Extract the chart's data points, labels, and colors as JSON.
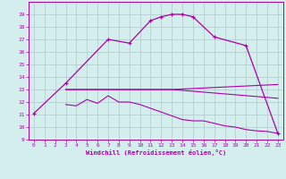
{
  "xlabel": "Windchill (Refroidissement éolien,°C)",
  "bg_color": "#d4eeed",
  "line_color": "#aa00aa",
  "grid_color": "#b0c8c8",
  "xlim": [
    -0.5,
    23.5
  ],
  "ylim": [
    9,
    20
  ],
  "xticks": [
    0,
    1,
    2,
    3,
    4,
    5,
    6,
    7,
    8,
    9,
    10,
    11,
    12,
    13,
    14,
    15,
    16,
    17,
    18,
    19,
    20,
    21,
    22,
    23
  ],
  "yticks": [
    9,
    10,
    11,
    12,
    13,
    14,
    15,
    16,
    17,
    18,
    19
  ],
  "curves": [
    {
      "x": [
        0,
        3,
        7,
        9,
        11,
        12,
        13,
        14,
        15,
        17,
        20,
        23
      ],
      "y": [
        11.1,
        13.5,
        17.0,
        16.7,
        18.5,
        18.8,
        19.0,
        19.0,
        18.8,
        17.2,
        16.5,
        9.5
      ],
      "marker": true
    },
    {
      "x": [
        3,
        13,
        23
      ],
      "y": [
        13.0,
        13.0,
        13.4
      ],
      "marker": false
    },
    {
      "x": [
        3,
        13,
        23
      ],
      "y": [
        13.0,
        13.0,
        12.3
      ],
      "marker": false
    },
    {
      "x": [
        3,
        4,
        5,
        6,
        7,
        8,
        9,
        10,
        11,
        12,
        13,
        14,
        15,
        16,
        17,
        18,
        19,
        20,
        21,
        22,
        23
      ],
      "y": [
        11.8,
        11.7,
        12.2,
        11.9,
        12.5,
        12.0,
        12.0,
        11.8,
        11.5,
        11.2,
        10.9,
        10.6,
        10.5,
        10.5,
        10.3,
        10.1,
        10.0,
        9.8,
        9.7,
        9.65,
        9.5
      ],
      "marker": false
    }
  ]
}
